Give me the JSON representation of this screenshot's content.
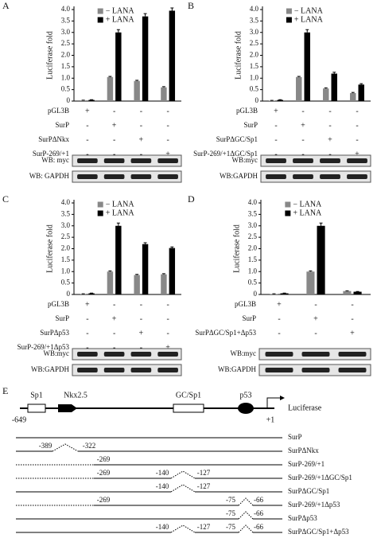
{
  "chart_data": [
    {
      "type": "bar",
      "panel": "A",
      "ylabel": "Luciferase fold",
      "categories": [
        "pGL3B",
        "SurP",
        "SurPΔNkx",
        "SurP-269/+1"
      ],
      "series": [
        {
          "name": "− LANA",
          "color": "#888888",
          "values": [
            0.03,
            1.05,
            0.88,
            0.6
          ],
          "errors": [
            0.01,
            0.03,
            0.03,
            0.03
          ]
        },
        {
          "name": "+ LANA",
          "color": "#000000",
          "values": [
            0.05,
            3.0,
            3.7,
            3.95
          ],
          "errors": [
            0.01,
            0.12,
            0.12,
            0.12
          ]
        }
      ],
      "conditions": [
        {
          "label": "pGL3B",
          "signs": [
            "+",
            "-",
            "-",
            "-"
          ]
        },
        {
          "label": "SurP",
          "signs": [
            "-",
            "+",
            "-",
            "-"
          ]
        },
        {
          "label": "SurPΔNkx",
          "signs": [
            "-",
            "-",
            "+",
            "-"
          ]
        },
        {
          "label": "SurP-269/+1",
          "signs": [
            "-",
            "-",
            "-",
            "+"
          ]
        }
      ],
      "blots": [
        "WB: myc",
        "WB: GAPDH"
      ],
      "ylim": [
        0,
        4
      ],
      "yticks": [
        0,
        0.5,
        {
          "value": 1,
          "label": "1.0"
        },
        1.5,
        {
          "value": 2,
          "label": "2.0"
        },
        2.5,
        {
          "value": 3,
          "label": "3.0"
        },
        3.5,
        {
          "value": 4,
          "label": "4.0"
        }
      ]
    },
    {
      "type": "bar",
      "panel": "B",
      "ylabel": "Luciferase fold",
      "categories": [
        "pGL3B",
        "SurP",
        "SurPΔGC/Sp1",
        "SurP-269/+1ΔGC/Sp1"
      ],
      "series": [
        {
          "name": "− LANA",
          "color": "#888888",
          "values": [
            0.02,
            1.05,
            0.55,
            0.35
          ],
          "errors": [
            0.01,
            0.03,
            0.03,
            0.03
          ]
        },
        {
          "name": "+ LANA",
          "color": "#000000",
          "values": [
            0.05,
            3.0,
            1.2,
            0.72
          ],
          "errors": [
            0.01,
            0.12,
            0.06,
            0.04
          ]
        }
      ],
      "conditions": [
        {
          "label": "pGL3B",
          "signs": [
            "+",
            "-",
            "-",
            "-"
          ]
        },
        {
          "label": "SurP",
          "signs": [
            "-",
            "+",
            "-",
            "-"
          ]
        },
        {
          "label": "SurPΔGC/Sp1",
          "signs": [
            "-",
            "-",
            "+",
            "-"
          ]
        },
        {
          "label": "SurP-269/+1ΔGC/Sp1",
          "signs": [
            "-",
            "-",
            "-",
            "+"
          ]
        }
      ],
      "blots": [
        "WB:myc",
        "WB:GAPDH"
      ],
      "ylim": [
        0,
        4
      ],
      "yticks": [
        0,
        0.5,
        {
          "value": 1,
          "label": "1.0"
        },
        1.5,
        {
          "value": 2,
          "label": "2.0"
        },
        2.5,
        {
          "value": 3,
          "label": "3.0"
        },
        3.5,
        {
          "value": 4,
          "label": "4.0"
        }
      ]
    },
    {
      "type": "bar",
      "panel": "C",
      "ylabel": "Luciferase fold",
      "categories": [
        "pGL3B",
        "SurP",
        "SurPΔp53",
        "SurP-269/+1Δp53"
      ],
      "series": [
        {
          "name": "− LANA",
          "color": "#888888",
          "values": [
            0.02,
            1.0,
            0.85,
            0.88
          ],
          "errors": [
            0.01,
            0.03,
            0.03,
            0.03
          ]
        },
        {
          "name": "+ LANA",
          "color": "#000000",
          "values": [
            0.05,
            3.0,
            2.2,
            2.03
          ],
          "errors": [
            0.01,
            0.12,
            0.06,
            0.05
          ]
        }
      ],
      "conditions": [
        {
          "label": "pGL3B",
          "signs": [
            "+",
            "-",
            "-",
            "-"
          ]
        },
        {
          "label": "SurP",
          "signs": [
            "-",
            "+",
            "-",
            "-"
          ]
        },
        {
          "label": "SurPΔp53",
          "signs": [
            "-",
            "-",
            "+",
            "-"
          ]
        },
        {
          "label": "SurP-269/+1Δp53",
          "signs": [
            "-",
            "-",
            "-",
            "+"
          ]
        }
      ],
      "blots": [
        "WB:myc",
        "WB:GAPDH"
      ],
      "ylim": [
        0,
        4
      ],
      "yticks": [
        0,
        0.5,
        {
          "value": 1,
          "label": "1.0"
        },
        1.5,
        {
          "value": 2,
          "label": "2.0"
        },
        2.5,
        {
          "value": 3,
          "label": "3.0"
        },
        3.5,
        {
          "value": 4,
          "label": "4.0"
        }
      ]
    },
    {
      "type": "bar",
      "panel": "D",
      "ylabel": "Luciferase fold",
      "categories": [
        "pGL3B",
        "SurP",
        "SurPΔGC/Sp1+Δp53"
      ],
      "series": [
        {
          "name": "− LANA",
          "color": "#888888",
          "values": [
            0.02,
            1.0,
            0.15
          ],
          "errors": [
            0.01,
            0.03,
            0.01
          ]
        },
        {
          "name": "+ LANA",
          "color": "#000000",
          "values": [
            0.05,
            3.0,
            0.12
          ],
          "errors": [
            0.01,
            0.12,
            0.01
          ]
        }
      ],
      "conditions": [
        {
          "label": "pGL3B",
          "signs": [
            "+",
            "-",
            "-"
          ]
        },
        {
          "label": "SurP",
          "signs": [
            "-",
            "+",
            "-"
          ]
        },
        {
          "label": "SurPΔGC/Sp1+Δp53",
          "signs": [
            "-",
            "-",
            "+"
          ]
        }
      ],
      "blots": [
        "WB:myc",
        "WB:GAPDH"
      ],
      "ylim": [
        0,
        4
      ],
      "yticks": [
        0,
        0.5,
        {
          "value": 1,
          "label": "1.0"
        },
        1.5,
        {
          "value": 2,
          "label": "2.0"
        },
        2.5,
        {
          "value": 3,
          "label": "3.0"
        },
        3.5,
        {
          "value": 4,
          "label": "4.0"
        }
      ]
    }
  ],
  "diagram": {
    "panel": "E",
    "elements": [
      "Sp1",
      "Nkx2.5",
      "GC/Sp1",
      "p53"
    ],
    "start": "-649",
    "end": "+1",
    "reporter": "Luciferase",
    "constructs": [
      {
        "name": "SurP",
        "labels": []
      },
      {
        "name": "SurPΔNkx",
        "labels": [
          "-389",
          "-322"
        ]
      },
      {
        "name": "SurP-269/+1",
        "labels": [
          "-269"
        ]
      },
      {
        "name": "SurP-269/+1ΔGC/Sp1",
        "labels": [
          "-269",
          "-140",
          "-127"
        ]
      },
      {
        "name": "SurPΔGC/Sp1",
        "labels": [
          "-140",
          "-127"
        ]
      },
      {
        "name": "SurP-269/+1Δp53",
        "labels": [
          "-269",
          "-75",
          "-66"
        ]
      },
      {
        "name": "SurPΔp53",
        "labels": [
          "-75",
          "-66"
        ]
      },
      {
        "name": "SurPΔGC/Sp1+Δp53",
        "labels": [
          "-140",
          "-127",
          "-75",
          "-66"
        ]
      }
    ]
  }
}
